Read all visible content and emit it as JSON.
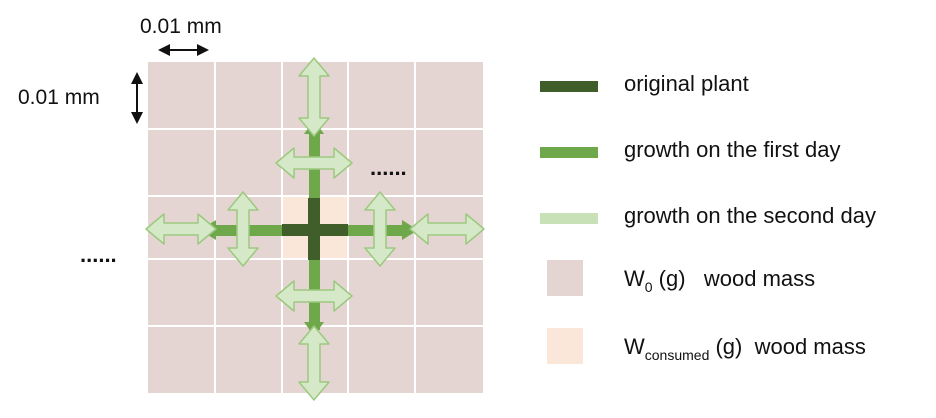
{
  "diagram": {
    "scale_x_label": "0.01 mm",
    "scale_y_label": "0.01 mm",
    "ellipsis_right": "......",
    "ellipsis_left": "......",
    "grid": {
      "rows": 5,
      "cols": 5
    }
  },
  "legend": {
    "items": [
      {
        "text": "original plant",
        "color": "#3f5e2a",
        "kind": "line"
      },
      {
        "text": "growth on the first day",
        "color": "#6fa84a",
        "kind": "line"
      },
      {
        "text": "growth on the second day",
        "color": "#c8e1b6",
        "kind": "line"
      },
      {
        "symbol": "W",
        "sub": "0",
        "text": " (g)   wood mass",
        "color": "#e4d4d2",
        "kind": "box"
      },
      {
        "symbol": "W",
        "sub": "consumed",
        "text": " (g)  wood mass",
        "color": "#fbe6da",
        "kind": "box"
      }
    ]
  },
  "colors": {
    "cell": "#e4d4d2",
    "cell_consumed": "#fbe6da",
    "grid_line": "#ffffff",
    "original": "#3f5e2a",
    "day1": "#6fa84a",
    "day2_fill": "#d5e9c8",
    "day2_stroke": "#9cc97f"
  }
}
